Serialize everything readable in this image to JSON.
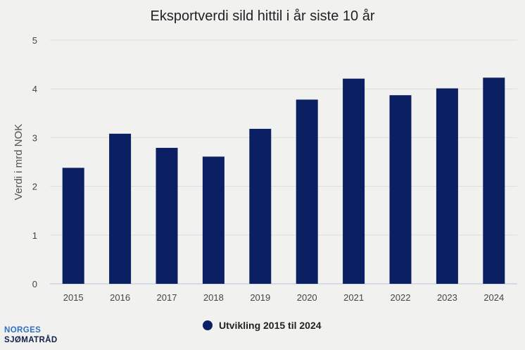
{
  "chart_data": {
    "type": "bar",
    "title": "Eksportverdi sild hittil i år siste 10 år",
    "xlabel": "",
    "ylabel": "Verdi i mrd NOK",
    "categories": [
      "2015",
      "2016",
      "2017",
      "2018",
      "2019",
      "2020",
      "2021",
      "2022",
      "2023",
      "2024"
    ],
    "series": [
      {
        "name": "Utvikling 2015 til 2024",
        "values": [
          2.38,
          3.08,
          2.79,
          2.61,
          3.18,
          3.78,
          4.21,
          3.87,
          4.01,
          4.23
        ]
      }
    ],
    "ylim": [
      0,
      5
    ],
    "yticks": [
      "0",
      "1",
      "2",
      "3",
      "4",
      "5"
    ],
    "grid": true,
    "legend": "bottom-center",
    "colors": {
      "bar": "#0b1f63",
      "background": "#f1f2f0"
    }
  },
  "logo": {
    "line1": "NORGES",
    "line2": "SJØMATRÅD"
  }
}
